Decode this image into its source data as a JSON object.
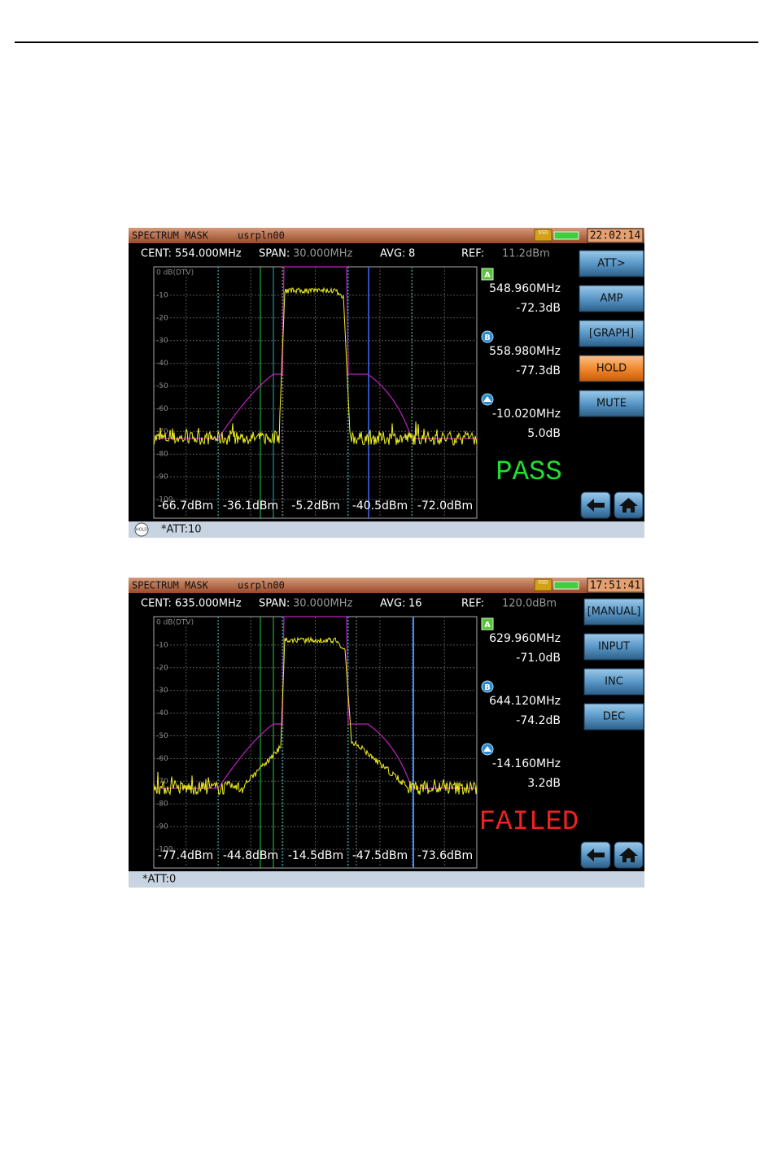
{
  "screens": [
    {
      "title_bar": {
        "mode": "SPECTRUM MASK",
        "file": "usrpln00",
        "storage": "SSD",
        "time": "22:02:14"
      },
      "info": {
        "cent_label": "CENT:",
        "cent": "554.000MHz",
        "span_label": "SPAN:",
        "span": "30.000MHz",
        "avg_label": "AVG:",
        "avg": "8",
        "ref_label": "REF:",
        "ref": "11.2dBm"
      },
      "grid_labels": [
        "0 dB(DTV)",
        "-10",
        "-20",
        "-30",
        "-40",
        "-50",
        "-60",
        "-70",
        "-80",
        "-90",
        "-100"
      ],
      "band_powers": [
        "-66.7dBm",
        "-36.1dBm",
        "-5.2dBm",
        "-40.5dBm",
        "-72.0dBm"
      ],
      "markers": [
        {
          "badge": "A",
          "frequency": "548.960MHz",
          "level": "-72.3dB"
        },
        {
          "badge": "B",
          "frequency": "558.980MHz",
          "level": "-77.3dB"
        },
        {
          "frequency": "-10.020MHz",
          "level": "5.0dB"
        }
      ],
      "result": "PASS",
      "buttons": [
        "ATT>",
        "AMP",
        "[GRAPH]",
        "HOLD",
        "MUTE"
      ],
      "status": {
        "icon": "HOLD",
        "text": "*ATT:10"
      }
    },
    {
      "title_bar": {
        "mode": "SPECTRUM MASK",
        "file": "usrpln00",
        "storage": "SSD",
        "time": "17:51:41"
      },
      "info": {
        "cent_label": "CENT:",
        "cent": "635.000MHz",
        "span_label": "SPAN:",
        "span": "30.000MHz",
        "avg_label": "AVG:",
        "avg": "16",
        "ref_label": "REF:",
        "ref": "120.0dBm"
      },
      "grid_labels": [
        "0 dB(DTV)",
        "-10",
        "-20",
        "-30",
        "-40",
        "-50",
        "-60",
        "-70",
        "-80",
        "-90",
        "-100"
      ],
      "band_powers": [
        "-77.4dBm",
        "-44.8dBm",
        "-14.5dBm",
        "-47.5dBm",
        "-73.6dBm"
      ],
      "markers": [
        {
          "badge": "A",
          "frequency": "629.960MHz",
          "level": "-71.0dB"
        },
        {
          "badge": "B",
          "frequency": "644.120MHz",
          "level": "-74.2dB"
        },
        {
          "frequency": "-14.160MHz",
          "level": "3.2dB"
        }
      ],
      "result": "FAILED",
      "buttons": [
        "[MANUAL]",
        "INPUT",
        "INC",
        "DEC"
      ],
      "status": {
        "text": "*ATT:0"
      }
    }
  ]
}
